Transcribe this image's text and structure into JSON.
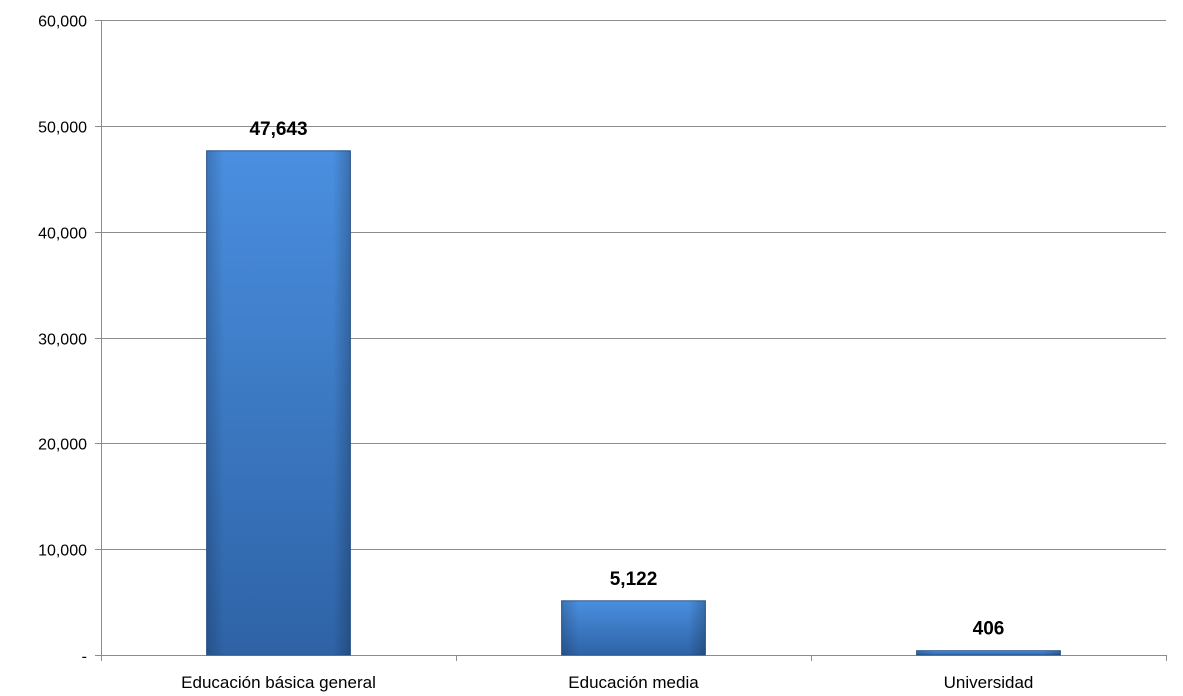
{
  "chart_data": {
    "type": "bar",
    "title": "",
    "xlabel": "",
    "ylabel": "",
    "categories": [
      "Educación básica general",
      "Educación media",
      "Universidad"
    ],
    "values": [
      47643,
      5122,
      406
    ],
    "value_labels": [
      "47,643",
      "5,122",
      "406"
    ],
    "ylim": [
      0,
      60000
    ],
    "y_ticks": [
      0,
      10000,
      20000,
      30000,
      40000,
      50000,
      60000
    ],
    "y_tick_labels": [
      "-",
      "10,000",
      "20,000",
      "30,000",
      "40,000",
      "50,000",
      "60,000"
    ],
    "grid": true,
    "legend": "none",
    "colors": {
      "bar": "#3d7fd0",
      "bar_dark": "#2c5f9e",
      "bar_light": "#5a9ae6"
    }
  }
}
